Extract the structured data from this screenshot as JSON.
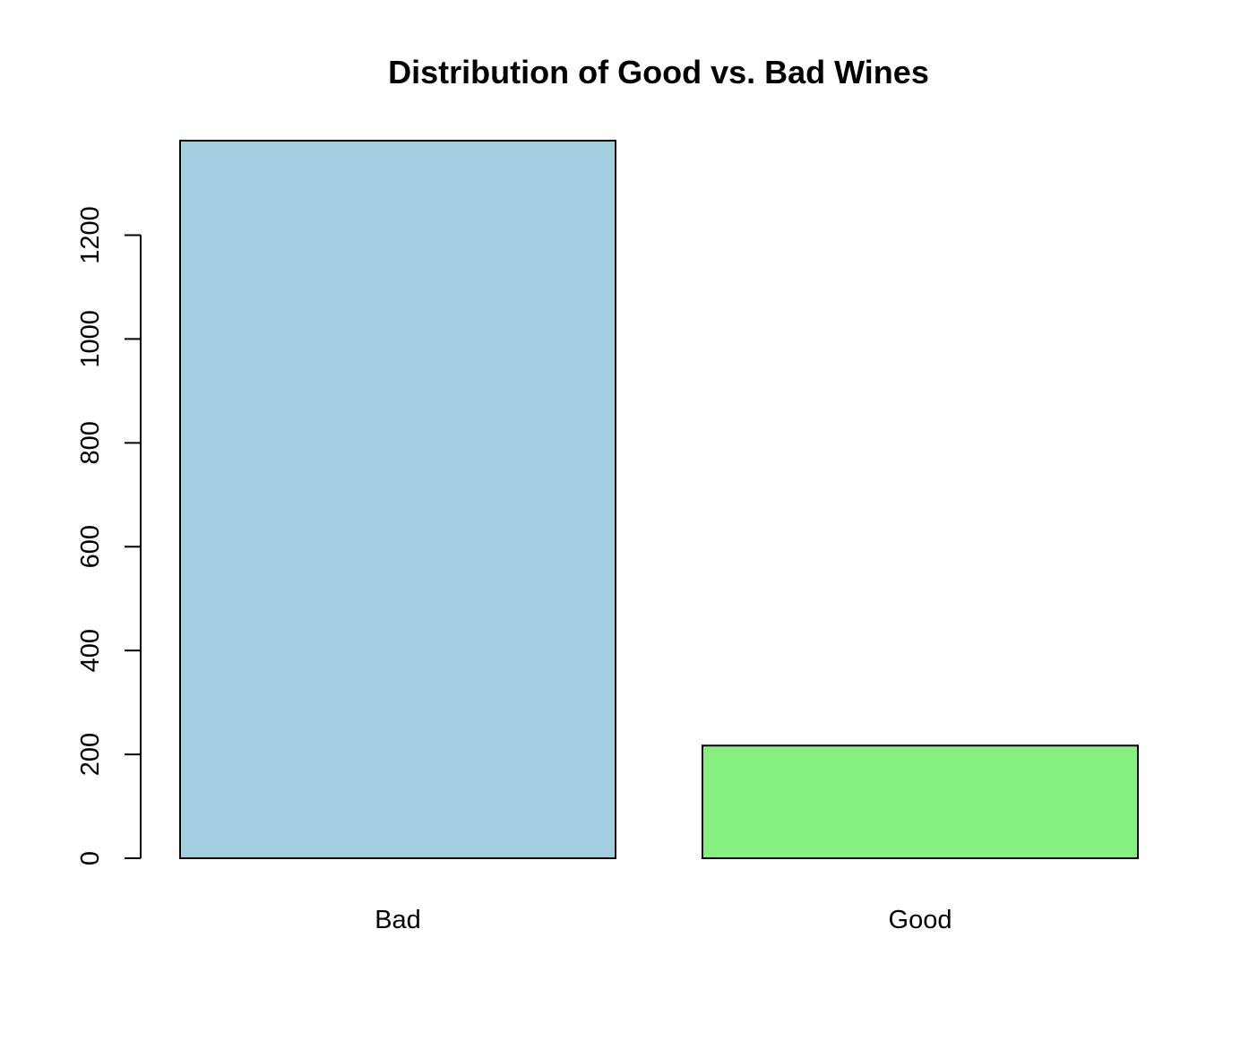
{
  "chart_data": {
    "type": "bar",
    "title": "Distribution of Good vs. Bad Wines",
    "xlabel": "",
    "ylabel": "",
    "categories": [
      "Bad",
      "Good"
    ],
    "values": [
      1382,
      217
    ],
    "colors": [
      "#A1CFE0",
      "#85EF80"
    ],
    "yticks": [
      0,
      200,
      400,
      600,
      800,
      1000,
      1200
    ],
    "ylim": [
      0,
      1382
    ],
    "grid": false,
    "legend": "none"
  }
}
